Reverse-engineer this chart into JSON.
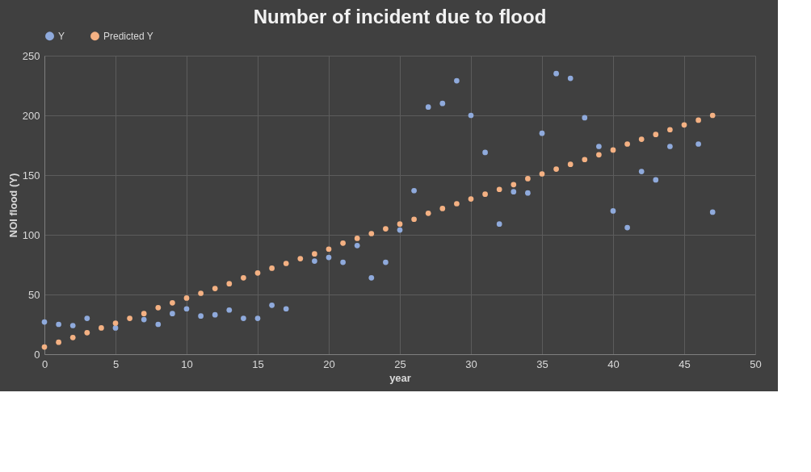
{
  "chart_data": {
    "type": "scatter",
    "title": "Number of incident due to flood",
    "xlabel": "year",
    "ylabel": "NOI flood (Y)",
    "x": [
      0,
      1,
      2,
      3,
      4,
      5,
      6,
      7,
      8,
      9,
      10,
      11,
      12,
      13,
      14,
      15,
      16,
      17,
      18,
      19,
      20,
      21,
      22,
      23,
      24,
      25,
      26,
      27,
      28,
      29,
      30,
      31,
      32,
      33,
      34,
      35,
      36,
      37,
      38,
      39,
      40,
      41,
      42,
      43,
      44,
      45,
      46,
      47
    ],
    "series": [
      {
        "name": "Y",
        "color": "#8faadc",
        "values": [
          27,
          25,
          24,
          30,
          null,
          22,
          null,
          29,
          25,
          34,
          38,
          32,
          33,
          37,
          30,
          30,
          41,
          38,
          null,
          78,
          81,
          77,
          91,
          64,
          77,
          104,
          137,
          207,
          210,
          229,
          200,
          169,
          109,
          136,
          135,
          185,
          235,
          231,
          198,
          174,
          120,
          106,
          153,
          146,
          174,
          null,
          176,
          119
        ]
      },
      {
        "name": "Predicted Y",
        "color": "#f4b183",
        "values": [
          6,
          10,
          14,
          18,
          22,
          26,
          30,
          34,
          39,
          43,
          47,
          51,
          55,
          59,
          64,
          68,
          72,
          76,
          80,
          84,
          88,
          93,
          97,
          101,
          105,
          109,
          113,
          118,
          122,
          126,
          130,
          134,
          138,
          142,
          147,
          151,
          155,
          159,
          163,
          167,
          171,
          176,
          180,
          184,
          188,
          192,
          196,
          200
        ]
      }
    ],
    "xlim": [
      0,
      50
    ],
    "xticks": [
      0,
      5,
      10,
      15,
      20,
      25,
      30,
      35,
      40,
      45,
      50
    ],
    "ylim": [
      0,
      250
    ],
    "yticks": [
      0,
      50,
      100,
      150,
      200,
      250
    ],
    "grid": true,
    "legend": "top",
    "marker": "circle"
  }
}
